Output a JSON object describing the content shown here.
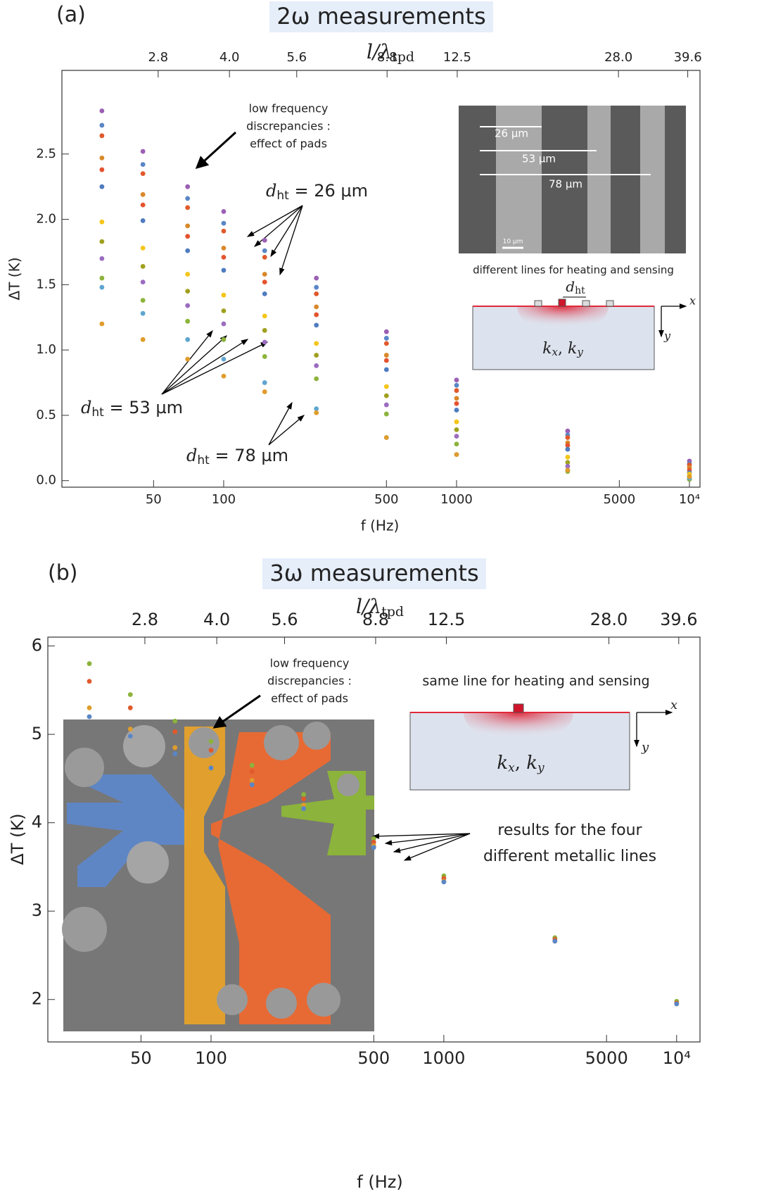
{
  "chart_data": [
    {
      "type": "scatter",
      "panel_label": "(a)",
      "title": "2ω measurements",
      "xlabel": "f (Hz)",
      "ylabel": "ΔT (K)",
      "x2label": {
        "text": "l/λ",
        "sub": "tpd"
      },
      "xscale": "log",
      "x2scale": "log",
      "xlim": [
        20.2,
        11100
      ],
      "xticks": [
        50,
        100,
        500,
        1000,
        5000,
        {
          "value": 10000,
          "label": "10⁴"
        }
      ],
      "x2lim": [
        1.73,
        42.1
      ],
      "x2ticks": [
        2.8,
        {
          "value": 4,
          "label": "4.0"
        },
        5.6,
        8.8,
        12.5,
        {
          "value": 28,
          "label": "28.0"
        },
        39.6
      ],
      "ylim": [
        -0.05,
        3.14
      ],
      "yticks": [
        {
          "value": 0,
          "label": "0.0"
        },
        0.5,
        {
          "value": 1,
          "label": "1.0"
        },
        1.5,
        {
          "value": 2,
          "label": "2.0"
        },
        2.5
      ],
      "x": [
        30,
        45,
        70,
        100,
        150,
        250,
        500,
        1000,
        3000,
        10000
      ],
      "series": [
        {
          "color": "#9b5fb4",
          "values": [
            2.83,
            2.52,
            2.25,
            2.06,
            1.84,
            1.55,
            1.14,
            0.77,
            0.38,
            0.15
          ]
        },
        {
          "color": "#5a86c6",
          "values": [
            2.72,
            2.42,
            2.16,
            1.97,
            1.76,
            1.48,
            1.09,
            0.73,
            0.35,
            0.13
          ]
        },
        {
          "color": "#e0592b",
          "values": [
            2.64,
            2.35,
            2.09,
            1.91,
            1.71,
            1.43,
            1.05,
            0.69,
            0.33,
            0.12
          ]
        },
        {
          "color": "#d9882a",
          "values": [
            2.47,
            2.19,
            1.95,
            1.78,
            1.58,
            1.33,
            0.96,
            0.63,
            0.29,
            0.1
          ]
        },
        {
          "color": "#e4532e",
          "values": [
            2.38,
            2.11,
            1.87,
            1.71,
            1.52,
            1.27,
            0.92,
            0.59,
            0.27,
            0.08
          ]
        },
        {
          "color": "#4f7cc0",
          "values": [
            2.25,
            1.99,
            1.76,
            1.61,
            1.43,
            1.19,
            0.85,
            0.54,
            0.24,
            0.06
          ]
        },
        {
          "color": "#f5c518",
          "values": [
            1.98,
            1.78,
            1.58,
            1.42,
            1.26,
            1.05,
            0.72,
            0.45,
            0.18,
            0.05
          ]
        },
        {
          "color": "#a0a020",
          "values": [
            1.83,
            1.64,
            1.45,
            1.3,
            1.15,
            0.96,
            0.65,
            0.39,
            0.14,
            0.03
          ]
        },
        {
          "color": "#9b6cc0",
          "values": [
            1.7,
            1.52,
            1.34,
            1.2,
            1.06,
            0.88,
            0.58,
            0.34,
            0.11,
            0.01
          ]
        },
        {
          "color": "#8cb33b",
          "values": [
            1.55,
            1.38,
            1.22,
            1.08,
            0.95,
            0.78,
            0.51,
            0.28,
            0.07,
            0.01
          ]
        },
        {
          "color": "#5fa6cf",
          "values": [
            1.48,
            1.28,
            1.08,
            0.93,
            0.75,
            0.55,
            0.33,
            0.2,
            0.08,
            0.02
          ]
        },
        {
          "color": "#e09c2c",
          "values": [
            1.2,
            1.08,
            0.93,
            0.8,
            0.68,
            0.52,
            0.33,
            0.2,
            0.08,
            0.03
          ]
        }
      ],
      "annotations": {
        "pads_note": [
          "low frequency",
          "discrepancies :",
          "effect of pads"
        ],
        "groups": [
          {
            "symbol": "d",
            "sub": "ht",
            "text": " = 26 µm"
          },
          {
            "symbol": "d",
            "sub": "ht",
            "text": " = 53 µm"
          },
          {
            "symbol": "d",
            "sub": "ht",
            "text": " = 78 µm"
          }
        ]
      },
      "inset": {
        "widths": [
          "26 µm",
          "53 µm",
          "78 µm"
        ],
        "scale_bar": "10 µm",
        "caption": "different lines for heating and sensing",
        "dht": {
          "symbol": "d",
          "sub": "ht"
        },
        "axes": [
          "x",
          "y"
        ],
        "k": [
          "k",
          "x",
          ", ",
          "k",
          "y"
        ]
      }
    },
    {
      "type": "scatter",
      "panel_label": "(b)",
      "title": "3ω measurements",
      "xlabel": "f (Hz)",
      "ylabel": "ΔT (K)",
      "x2label": {
        "text": "l/λ",
        "sub": "tpd"
      },
      "xscale": "log",
      "x2scale": "log",
      "xlim": [
        19.9,
        12600
      ],
      "xticks": [
        50,
        100,
        500,
        1000,
        5000,
        {
          "value": 10000,
          "label": "10⁴"
        }
      ],
      "x2lim": [
        1.73,
        44.0
      ],
      "x2ticks": [
        2.8,
        {
          "value": 4,
          "label": "4.0"
        },
        5.6,
        8.8,
        12.5,
        {
          "value": 28,
          "label": "28.0"
        },
        39.6
      ],
      "ylim": [
        1.52,
        6.1
      ],
      "yticks": [
        2,
        3,
        4,
        5,
        6
      ],
      "x": [
        30,
        45,
        70,
        100,
        150,
        250,
        500,
        1000,
        3000,
        10000
      ],
      "series": [
        {
          "color": "#8cb33b",
          "values": [
            5.8,
            5.45,
            5.15,
            4.92,
            4.65,
            4.32,
            3.82,
            3.4,
            2.7,
            1.98
          ]
        },
        {
          "color": "#e0592b",
          "values": [
            5.6,
            5.3,
            5.03,
            4.82,
            4.58,
            4.27,
            3.78,
            3.37,
            2.68,
            1.96
          ]
        },
        {
          "color": "#e09c2c",
          "values": [
            5.3,
            5.06,
            4.85,
            4.68,
            4.48,
            4.2,
            3.74,
            3.34,
            2.66,
            1.95
          ]
        },
        {
          "color": "#5a86c6",
          "values": [
            5.2,
            4.98,
            4.78,
            4.62,
            4.43,
            4.16,
            3.72,
            3.33,
            2.66,
            1.95
          ]
        }
      ],
      "annotations": {
        "pads_note": [
          "low frequency",
          "discrepancies :",
          "effect of pads"
        ],
        "results_note": [
          "results for the four",
          "different metallic lines"
        ]
      },
      "inset": {
        "caption": "same line for heating and sensing",
        "axes": [
          "x",
          "y"
        ],
        "k": [
          "k",
          "x",
          ", ",
          "k",
          "y"
        ]
      }
    }
  ]
}
